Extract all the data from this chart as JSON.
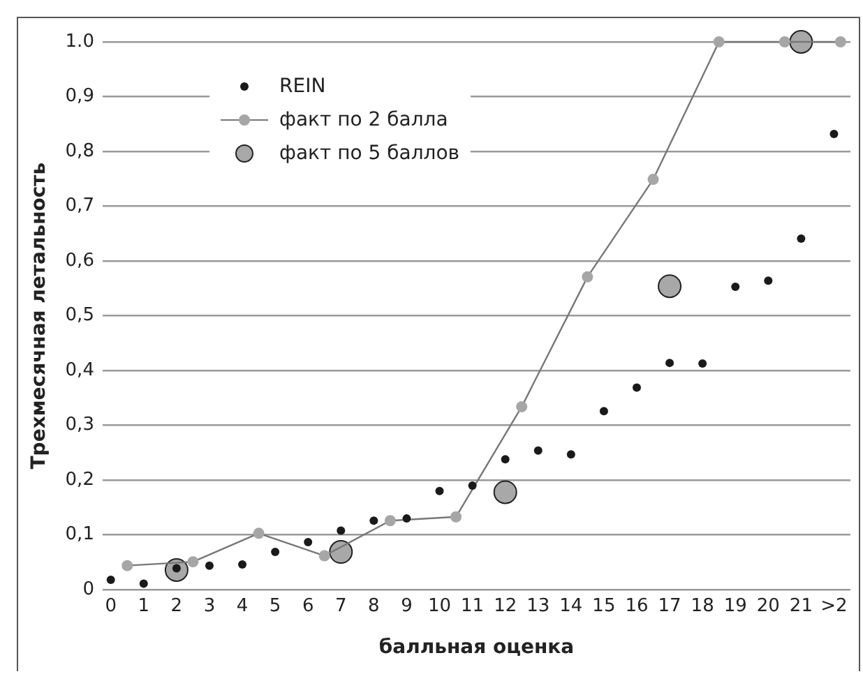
{
  "chart_data": {
    "type": "scatter",
    "xlabel": "балльная оценка",
    "ylabel": "Трехмесячная летальность",
    "xlim": [
      -0.25,
      22.5
    ],
    "ylim": [
      0,
      1.0
    ],
    "xticks": [
      0,
      1,
      2,
      3,
      4,
      5,
      6,
      7,
      8,
      9,
      10,
      11,
      12,
      13,
      14,
      15,
      16,
      17,
      18,
      19,
      20,
      21,
      {
        "value": 22,
        "label": ">2"
      }
    ],
    "yticks": [
      {
        "value": 0,
        "label": "0"
      },
      {
        "value": 0.1,
        "label": "0,1"
      },
      {
        "value": 0.2,
        "label": "0,2"
      },
      {
        "value": 0.3,
        "label": "0,3"
      },
      {
        "value": 0.4,
        "label": "0,4"
      },
      {
        "value": 0.5,
        "label": "0,5"
      },
      {
        "value": 0.6,
        "label": "0,6"
      },
      {
        "value": 0.7,
        "label": "0,7"
      },
      {
        "value": 0.8,
        "label": "0,8"
      },
      {
        "value": 0.9,
        "label": "0,9"
      },
      {
        "value": 1.0,
        "label": "1.0"
      }
    ],
    "grid": "y",
    "legend": "top left",
    "marker": "circle",
    "series": [
      {
        "name": "REIN",
        "type": "scatter",
        "color": "#1a1a1a",
        "x": [
          0,
          1,
          2,
          3,
          4,
          5,
          6,
          7,
          8,
          9,
          10,
          11,
          12,
          13,
          14,
          15,
          16,
          17,
          18,
          19,
          20,
          21,
          22
        ],
        "values": [
          0.018,
          0.011,
          0.039,
          0.044,
          0.046,
          0.069,
          0.087,
          0.108,
          0.126,
          0.13,
          0.18,
          0.19,
          0.238,
          0.254,
          0.247,
          0.326,
          0.369,
          0.414,
          0.413,
          0.553,
          0.564,
          0.641,
          0.832
        ]
      },
      {
        "name": "факт по 2 балла",
        "type": "line",
        "color": "#a6a6a6",
        "x": [
          0.5,
          2.5,
          4.5,
          6.5,
          8.5,
          10.5,
          12.5,
          14.5,
          16.5,
          18.5,
          20.5,
          22.2
        ],
        "values": [
          0.044,
          0.051,
          0.103,
          0.062,
          0.126,
          0.133,
          0.334,
          0.571,
          0.749,
          1.0,
          1.0,
          1.0
        ]
      },
      {
        "name": "факт по 5 баллов",
        "type": "scatter",
        "color": "#a8a8a8",
        "x": [
          2,
          7,
          12,
          17,
          21
        ],
        "values": [
          0.036,
          0.069,
          0.178,
          0.554,
          1.0
        ]
      }
    ]
  }
}
